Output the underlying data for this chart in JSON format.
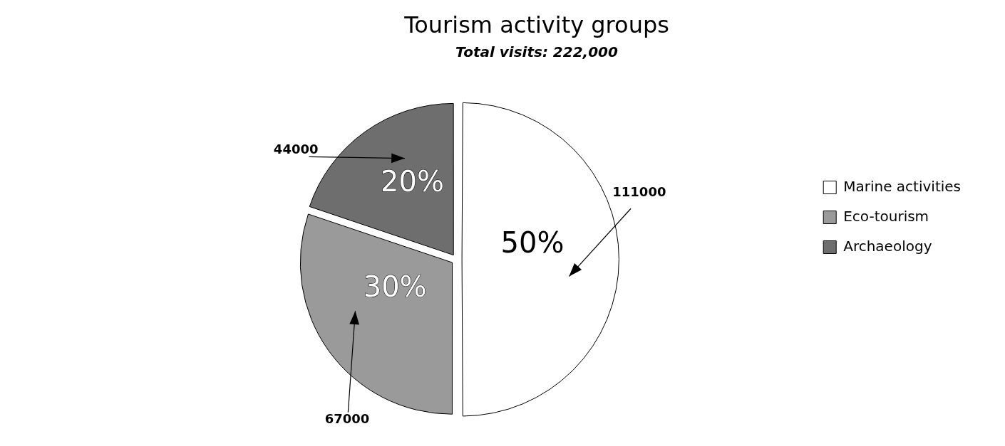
{
  "chart_data": {
    "type": "pie",
    "title": "Tourism activity groups",
    "subtitle": "Total visits: 222,000",
    "categories": [
      "Marine activities",
      "Eco-tourism",
      "Archaeology"
    ],
    "values": [
      111000,
      67000,
      44000
    ],
    "colors": [
      "#ffffff",
      "#9a9a9a",
      "#6e6e6e"
    ],
    "data_labels": true,
    "annotations": [
      {
        "text": "50%",
        "x": "Marine activities"
      },
      {
        "text": "30%",
        "x": "Eco-tourism"
      },
      {
        "text": "20%",
        "x": "Archaeology"
      }
    ],
    "legend": "right"
  }
}
